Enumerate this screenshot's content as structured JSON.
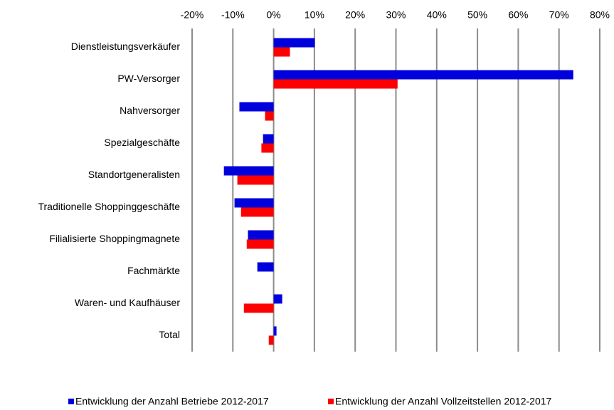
{
  "chart_data": {
    "type": "hbar",
    "categories": [
      "Dienstleistungsverkäufer",
      "PW-Versorger",
      "Nahversorger",
      "Spezialgeschäfte",
      "Standortgeneralisten",
      "Traditionelle Shoppinggeschäfte",
      "Filialisierte Shoppingmagnete",
      "Fachmärkte",
      "Waren- und Kaufhäuser",
      "Total"
    ],
    "series": [
      {
        "name": "Entwicklung der Anzahl Betriebe 2012-2017",
        "color": "#0000dd",
        "values": [
          10.1,
          73.5,
          -8.4,
          -2.6,
          -12.2,
          -9.6,
          -6.3,
          -4.0,
          2.1,
          0.7
        ]
      },
      {
        "name": "Entwicklung der Anzahl Vollzeitstellen 2012-2017",
        "color": "#ff0000",
        "values": [
          4.0,
          30.4,
          -2.1,
          -3.0,
          -8.9,
          -8.0,
          -6.6,
          0,
          -7.3,
          -1.2
        ]
      }
    ],
    "xlim": [
      -20,
      80
    ],
    "xticks": [
      {
        "value": -20,
        "label": "-20%"
      },
      {
        "value": -10,
        "label": "-10%"
      },
      {
        "value": 0,
        "label": "0%"
      },
      {
        "value": 10,
        "label": "10%"
      },
      {
        "value": 20,
        "label": "20%"
      },
      {
        "value": 30,
        "label": "30%"
      },
      {
        "value": 40,
        "label": "40%"
      },
      {
        "value": 50,
        "label": "50%"
      },
      {
        "value": 60,
        "label": "60%"
      },
      {
        "value": 70,
        "label": "70%"
      },
      {
        "value": 80,
        "label": "80%"
      }
    ],
    "grid": true,
    "legend": "bottom"
  }
}
